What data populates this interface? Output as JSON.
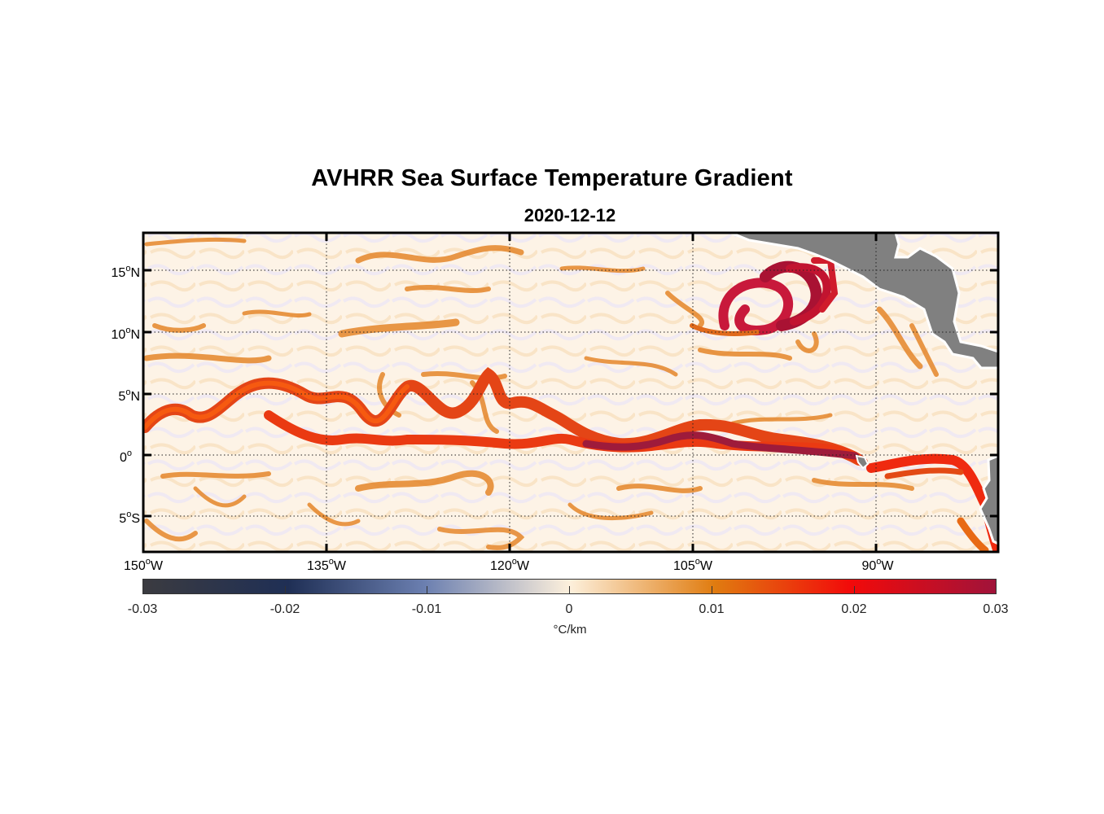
{
  "title": "AVHRR Sea Surface Temperature Gradient",
  "subtitle": "2020-12-12",
  "map": {
    "lat_labels": [
      {
        "deg": "15",
        "hemi": "N"
      },
      {
        "deg": "10",
        "hemi": "N"
      },
      {
        "deg": "5",
        "hemi": "N"
      },
      {
        "deg": "0",
        "hemi": ""
      },
      {
        "deg": "5",
        "hemi": "S"
      }
    ],
    "lon_labels": [
      {
        "deg": "150",
        "hemi": "W"
      },
      {
        "deg": "135",
        "hemi": "W"
      },
      {
        "deg": "120",
        "hemi": "W"
      },
      {
        "deg": "105",
        "hemi": "W"
      },
      {
        "deg": "90",
        "hemi": "W"
      }
    ],
    "extent": {
      "lon": [
        -150,
        -80
      ],
      "lat": [
        -8,
        18
      ]
    },
    "land_color": "#808080",
    "ocean_base_color": "#fdf3e6"
  },
  "colorbar": {
    "ticks": [
      "-0.03",
      "-0.02",
      "-0.01",
      "0",
      "0.01",
      "0.02",
      "0.03"
    ],
    "range": [
      -0.03,
      0.03
    ],
    "unit": "°C/km",
    "colors": [
      "#3b3b40",
      "#1f2f55",
      "#6b7fb0",
      "#fdf0dc",
      "#e07c10",
      "#f20a0a",
      "#a0133a"
    ]
  }
}
